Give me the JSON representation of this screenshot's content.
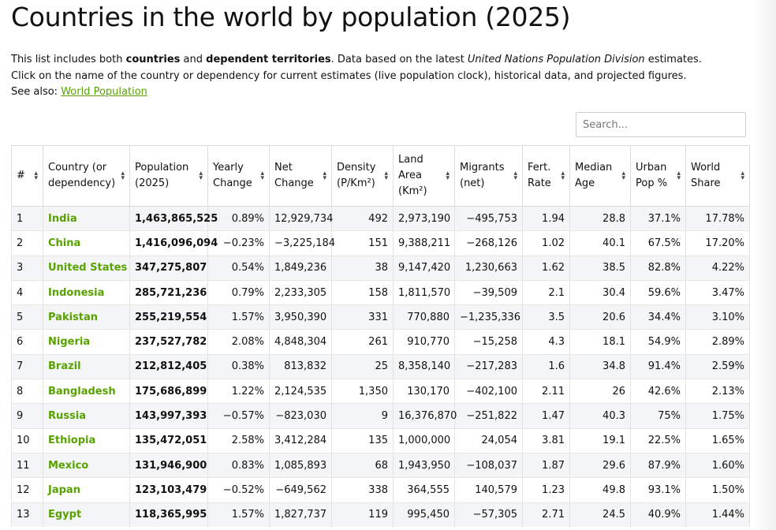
{
  "page": {
    "title": "Countries in the world by population (2025)",
    "intro": {
      "p1_a": "This list includes both ",
      "p1_b": "countries",
      "p1_c": " and ",
      "p1_d": "dependent territories",
      "p1_e": ". Data based on the latest ",
      "p1_f": "United Nations Population Division",
      "p1_g": " estimates.",
      "p2": "Click on the name of the country or dependency for current estimates (live population clock), historical data, and projected figures.",
      "p3_a": "See also: ",
      "p3_link": "World Population"
    }
  },
  "search": {
    "placeholder": "Search..."
  },
  "table": {
    "headers": {
      "rank": "#",
      "country": "Country (or dependency)",
      "population": "Population (2025)",
      "yearly_change": "Yearly Change",
      "net_change": "Net Change",
      "density": "Density (P/Km²)",
      "land_area": "Land Area (Km²)",
      "migrants": "Migrants (net)",
      "fert_rate": "Fert. Rate",
      "median_age": "Median Age",
      "urban_pop": "Urban Pop %",
      "world_share": "World Share"
    },
    "rows": [
      {
        "rank": "1",
        "country": "India",
        "population": "1,463,865,525",
        "yearly": "0.89%",
        "net": "12,929,734",
        "density": "492",
        "land": "2,973,190",
        "migrants": "−495,753",
        "fert": "1.94",
        "age": "28.8",
        "urban": "37.1%",
        "share": "17.78%"
      },
      {
        "rank": "2",
        "country": "China",
        "population": "1,416,096,094",
        "yearly": "−0.23%",
        "net": "−3,225,184",
        "density": "151",
        "land": "9,388,211",
        "migrants": "−268,126",
        "fert": "1.02",
        "age": "40.1",
        "urban": "67.5%",
        "share": "17.20%"
      },
      {
        "rank": "3",
        "country": "United States",
        "population": "347,275,807",
        "yearly": "0.54%",
        "net": "1,849,236",
        "density": "38",
        "land": "9,147,420",
        "migrants": "1,230,663",
        "fert": "1.62",
        "age": "38.5",
        "urban": "82.8%",
        "share": "4.22%"
      },
      {
        "rank": "4",
        "country": "Indonesia",
        "population": "285,721,236",
        "yearly": "0.79%",
        "net": "2,233,305",
        "density": "158",
        "land": "1,811,570",
        "migrants": "−39,509",
        "fert": "2.1",
        "age": "30.4",
        "urban": "59.6%",
        "share": "3.47%"
      },
      {
        "rank": "5",
        "country": "Pakistan",
        "population": "255,219,554",
        "yearly": "1.57%",
        "net": "3,950,390",
        "density": "331",
        "land": "770,880",
        "migrants": "−1,235,336",
        "fert": "3.5",
        "age": "20.6",
        "urban": "34.4%",
        "share": "3.10%"
      },
      {
        "rank": "6",
        "country": "Nigeria",
        "population": "237,527,782",
        "yearly": "2.08%",
        "net": "4,848,304",
        "density": "261",
        "land": "910,770",
        "migrants": "−15,258",
        "fert": "4.3",
        "age": "18.1",
        "urban": "54.9%",
        "share": "2.89%"
      },
      {
        "rank": "7",
        "country": "Brazil",
        "population": "212,812,405",
        "yearly": "0.38%",
        "net": "813,832",
        "density": "25",
        "land": "8,358,140",
        "migrants": "−217,283",
        "fert": "1.6",
        "age": "34.8",
        "urban": "91.4%",
        "share": "2.59%"
      },
      {
        "rank": "8",
        "country": "Bangladesh",
        "population": "175,686,899",
        "yearly": "1.22%",
        "net": "2,124,535",
        "density": "1,350",
        "land": "130,170",
        "migrants": "−402,100",
        "fert": "2.11",
        "age": "26",
        "urban": "42.6%",
        "share": "2.13%"
      },
      {
        "rank": "9",
        "country": "Russia",
        "population": "143,997,393",
        "yearly": "−0.57%",
        "net": "−823,030",
        "density": "9",
        "land": "16,376,870",
        "migrants": "−251,822",
        "fert": "1.47",
        "age": "40.3",
        "urban": "75%",
        "share": "1.75%"
      },
      {
        "rank": "10",
        "country": "Ethiopia",
        "population": "135,472,051",
        "yearly": "2.58%",
        "net": "3,412,284",
        "density": "135",
        "land": "1,000,000",
        "migrants": "24,054",
        "fert": "3.81",
        "age": "19.1",
        "urban": "22.5%",
        "share": "1.65%"
      },
      {
        "rank": "11",
        "country": "Mexico",
        "population": "131,946,900",
        "yearly": "0.83%",
        "net": "1,085,893",
        "density": "68",
        "land": "1,943,950",
        "migrants": "−108,037",
        "fert": "1.87",
        "age": "29.6",
        "urban": "87.9%",
        "share": "1.60%"
      },
      {
        "rank": "12",
        "country": "Japan",
        "population": "123,103,479",
        "yearly": "−0.52%",
        "net": "−649,562",
        "density": "338",
        "land": "364,555",
        "migrants": "140,579",
        "fert": "1.23",
        "age": "49.8",
        "urban": "93.1%",
        "share": "1.50%"
      },
      {
        "rank": "13",
        "country": "Egypt",
        "population": "118,365,995",
        "yearly": "1.57%",
        "net": "1,827,737",
        "density": "119",
        "land": "995,450",
        "migrants": "−57,305",
        "fert": "2.71",
        "age": "24.5",
        "urban": "40.9%",
        "share": "1.44%"
      }
    ]
  },
  "colors": {
    "link": "#58a200",
    "row_alt": "#f4f5f7",
    "border": "#dcdcdc"
  },
  "icons": {
    "sort": "sort-arrows-icon"
  }
}
